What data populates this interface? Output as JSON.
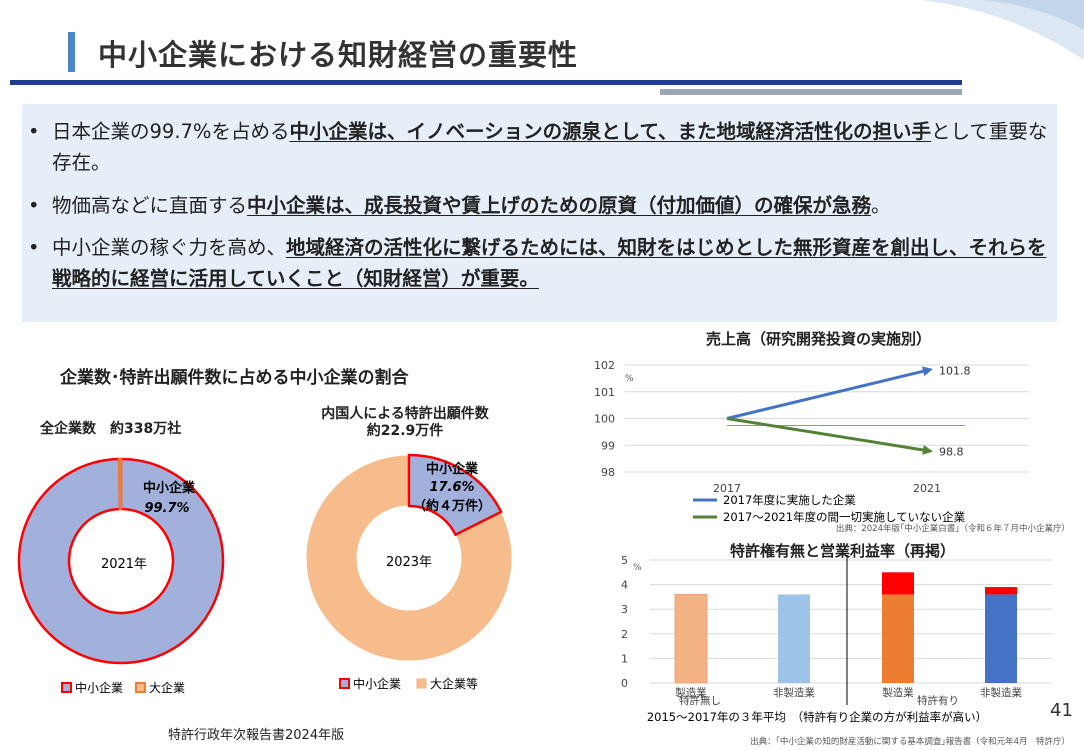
{
  "title": "中小企業における知財経営の重要性",
  "bullets": [
    {
      "pre": "日本企業の99.7%を占める",
      "bold": "中小企業は、イノベーションの源泉として、また地域経済活性化の担い手",
      "post": "として重要な存在。"
    },
    {
      "pre": "物価高などに直面する",
      "bold": "中小企業は、成長投資や賃上げのための原資（付加価値）の確保が急務",
      "post": "。"
    },
    {
      "pre": "中小企業の稼ぐ力を高め、",
      "bold": "地域経済の活性化に繋げるためには、知財をはじめとした無形資産を創出し、それらを戦略的に経営に活用していくこと（知財経営）が重要。",
      "post": ""
    }
  ],
  "left_title": "企業数･特許出願件数に占める中小企業の割合",
  "source_left": "特許行政年次報告書2024年版",
  "page_number": "41",
  "chart_data": [
    {
      "type": "pie",
      "title": "全企業数　約338万社",
      "center_label": "2021年",
      "categories": [
        "中小企業",
        "大企業"
      ],
      "values": [
        99.7,
        0.3
      ],
      "colors": [
        "#a2b0dc",
        "#f7bc8c"
      ],
      "annotation": {
        "name": "中小企業",
        "value": "99.7%"
      },
      "legend": "bottom-left"
    },
    {
      "type": "pie",
      "title": "内国人による特許出願件数\n約22.9万件",
      "center_label": "2023年",
      "categories": [
        "中小企業",
        "大企業等"
      ],
      "values": [
        17.6,
        82.4
      ],
      "colors": [
        "#a2b0dc",
        "#f7bc8c"
      ],
      "annotation": {
        "name": "中小企業",
        "value": "17.6%",
        "note": "（約４万件）"
      },
      "legend": "bottom"
    },
    {
      "type": "line",
      "title": "売上高（研究開発投資の実施別）",
      "x": [
        "2017",
        "2021"
      ],
      "series": [
        {
          "name": "2017年度に実施した企業",
          "values": [
            100,
            101.8
          ],
          "color": "#4472c4"
        },
        {
          "name": "2017～2021年度の間一切実施していない企業",
          "values": [
            100,
            98.8
          ],
          "color": "#548235"
        }
      ],
      "data_labels": [
        "101.8",
        "98.8"
      ],
      "yunit": "%",
      "ylim": [
        98,
        102
      ],
      "yticks": [
        98,
        99,
        100,
        101,
        102
      ],
      "grid": true,
      "source": "出典：2024年版｢中小企業白書｣（令和６年７月中小企業庁）"
    },
    {
      "type": "bar",
      "title": "特許権有無と営業利益率（再掲）",
      "categories": [
        "製造業",
        "非製造業",
        "製造業",
        "非製造業"
      ],
      "groups": [
        "特許無し",
        "特許有り"
      ],
      "values": [
        3.6,
        3.6,
        3.6,
        3.6
      ],
      "extra": [
        0,
        0,
        0.9,
        0.3
      ],
      "colors": [
        "#f4b183",
        "#9dc3e6",
        "#ed7d31",
        "#4472c4"
      ],
      "extra_color": "#ff0000",
      "yunit": "%",
      "ylim": [
        0,
        5
      ],
      "yticks": [
        0,
        1,
        2,
        3,
        4,
        5
      ],
      "grid": true,
      "caption": "2015～2017年の３年平均　（特許有り企業の方が利益率が高い）",
      "source": "出典：｢中小企業の知的財産活動に関する基本調査｣報告書（令和元年4月　特許庁）"
    }
  ]
}
